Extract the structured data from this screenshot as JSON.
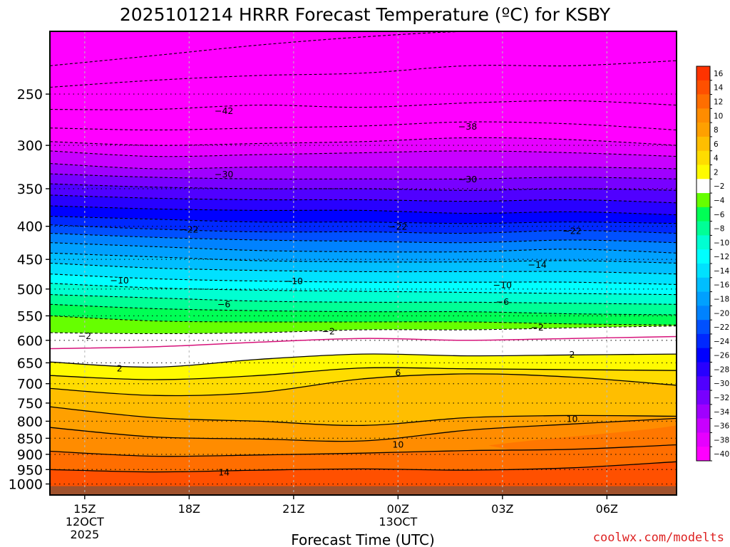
{
  "chart_data": {
    "type": "heatmap",
    "title": "2025101214 HRRR Forecast Temperature (ºC) for KSBY",
    "xlabel": "Forecast Time (UTC)",
    "credit": "coolwx.com/modelts",
    "x_ticks": [
      {
        "hour": 1,
        "label": "15Z",
        "sub1": "12OCT",
        "sub2": "2025"
      },
      {
        "hour": 4,
        "label": "18Z",
        "sub1": "",
        "sub2": ""
      },
      {
        "hour": 7,
        "label": "21Z",
        "sub1": "",
        "sub2": ""
      },
      {
        "hour": 10,
        "label": "00Z",
        "sub1": "13OCT",
        "sub2": ""
      },
      {
        "hour": 13,
        "label": "03Z",
        "sub1": "",
        "sub2": ""
      },
      {
        "hour": 16,
        "label": "06Z",
        "sub1": "",
        "sub2": ""
      }
    ],
    "x_range_hours": [
      0,
      18
    ],
    "y_axis": "pressure (hPa), log scale",
    "y_ticks": [
      250,
      300,
      350,
      400,
      450,
      500,
      550,
      600,
      650,
      700,
      750,
      800,
      850,
      900,
      950,
      1000
    ],
    "y_range": [
      200,
      1040
    ],
    "colorbar": {
      "levels": [
        16,
        14,
        12,
        10,
        8,
        6,
        4,
        2,
        -2,
        -4,
        -6,
        -8,
        -10,
        -12,
        -14,
        -16,
        -18,
        -20,
        -22,
        -24,
        -26,
        -28,
        -30,
        -32,
        -34,
        -36,
        -38,
        -40
      ],
      "labels": [
        "16",
        "14",
        "12",
        "10",
        "8",
        "6",
        "4",
        "2",
        "−2",
        "−4",
        "−6",
        "−8",
        "−10",
        "−12",
        "−14",
        "−16",
        "−18",
        "−20",
        "−22",
        "−24",
        "−26",
        "−28",
        "−30",
        "−32",
        "−34",
        "−36",
        "−38",
        "−40"
      ],
      "colors": [
        "#ff3300",
        "#ff5000",
        "#ff6e00",
        "#ff8c00",
        "#ffa000",
        "#ffbe00",
        "#ffdc00",
        "#fffa00",
        "#ffffff",
        "#66ff00",
        "#00ff55",
        "#00ff96",
        "#00ffd2",
        "#00ffff",
        "#00e1ff",
        "#00beff",
        "#00a0ff",
        "#0082ff",
        "#0050ff",
        "#0028ff",
        "#0000ff",
        "#2800ff",
        "#5000ff",
        "#7800ff",
        "#a000ff",
        "#c800ff",
        "#e600ff",
        "#ff00ff"
      ]
    },
    "band_colors": {
      "-40": "#ff00ff",
      "-38": "#e600ff",
      "-36": "#c800ff",
      "-34": "#a000ff",
      "-32": "#7800ff",
      "-30": "#5000ff",
      "-28": "#2800ff",
      "-26": "#0000ff",
      "-24": "#0028ff",
      "-22": "#0050ff",
      "-20": "#0082ff",
      "-18": "#00a0ff",
      "-16": "#00beff",
      "-14": "#00e1ff",
      "-12": "#00ffff",
      "-10": "#00ffd2",
      "-8": "#00ff96",
      "-6": "#00ff55",
      "-4": "#66ff00",
      "-2": "#ffffff",
      "2": "#fffa00",
      "4": "#ffdc00",
      "6": "#ffbe00",
      "8": "#ffa000",
      "10": "#ff8c00",
      "12": "#ff6e00",
      "14": "#ff5000",
      "16": "#ff3300"
    },
    "ground_color": "#a0522d",
    "isotherm_profiles": {
      "hours": [
        0,
        3,
        6,
        9,
        12,
        15,
        18
      ],
      "temp_levels": [
        -46,
        -44,
        -42,
        -40,
        -38,
        -36,
        -34,
        -32,
        -30,
        -28,
        -26,
        -24,
        -22,
        -20,
        -18,
        -16,
        -14,
        -12,
        -10,
        -8,
        -6,
        -4,
        -2,
        0,
        2,
        4,
        6,
        8,
        10,
        12,
        14
      ],
      "pressure": [
        [
          226,
          218,
          210,
          204,
          200,
          200,
          200
        ],
        [
          244,
          238,
          234,
          232,
          226,
          226,
          222
        ],
        [
          264,
          264,
          260,
          262,
          258,
          256,
          260
        ],
        [
          282,
          284,
          282,
          280,
          276,
          278,
          284
        ],
        [
          296,
          300,
          298,
          296,
          292,
          294,
          300
        ],
        [
          306,
          312,
          310,
          308,
          306,
          308,
          312
        ],
        [
          320,
          326,
          324,
          324,
          324,
          324,
          326
        ],
        [
          332,
          336,
          338,
          338,
          338,
          336,
          338
        ],
        [
          344,
          348,
          350,
          350,
          352,
          350,
          352
        ],
        [
          358,
          362,
          364,
          364,
          366,
          364,
          368
        ],
        [
          372,
          376,
          378,
          378,
          382,
          380,
          384
        ],
        [
          386,
          390,
          394,
          394,
          396,
          394,
          396
        ],
        [
          398,
          404,
          408,
          408,
          410,
          406,
          410
        ],
        [
          410,
          416,
          420,
          422,
          424,
          420,
          424
        ],
        [
          424,
          430,
          436,
          438,
          438,
          434,
          440
        ],
        [
          440,
          446,
          452,
          454,
          454,
          452,
          456
        ],
        [
          456,
          464,
          468,
          470,
          470,
          470,
          474
        ],
        [
          474,
          482,
          486,
          488,
          488,
          488,
          492
        ],
        [
          490,
          498,
          502,
          504,
          506,
          508,
          510
        ],
        [
          510,
          516,
          522,
          524,
          524,
          526,
          528
        ],
        [
          528,
          536,
          540,
          542,
          542,
          546,
          548
        ],
        [
          550,
          560,
          562,
          562,
          562,
          566,
          568
        ],
        [
          584,
          586,
          584,
          578,
          578,
          574,
          570
        ],
        [
          618,
          614,
          604,
          596,
          600,
          596,
          592
        ],
        [
          648,
          660,
          642,
          630,
          634,
          632,
          630
        ],
        [
          680,
          690,
          680,
          662,
          664,
          666,
          668
        ],
        [
          712,
          730,
          722,
          688,
          676,
          684,
          704
        ],
        [
          760,
          790,
          800,
          812,
          790,
          784,
          786
        ],
        [
          818,
          846,
          852,
          858,
          826,
          808,
          792
        ],
        [
          890,
          906,
          902,
          896,
          888,
          884,
          870
        ],
        [
          950,
          958,
          952,
          948,
          952,
          944,
          924
        ]
      ]
    },
    "isotherm_labels": [
      {
        "text": "−42",
        "hour": 5,
        "p": 265
      },
      {
        "text": "−38",
        "hour": 12,
        "p": 280
      },
      {
        "text": "−30",
        "hour": 5,
        "p": 332
      },
      {
        "text": "−30",
        "hour": 12,
        "p": 338
      },
      {
        "text": "−22",
        "hour": 4,
        "p": 404
      },
      {
        "text": "−22",
        "hour": 10,
        "p": 400
      },
      {
        "text": "−22",
        "hour": 15,
        "p": 406
      },
      {
        "text": "−14",
        "hour": 14,
        "p": 458
      },
      {
        "text": "−10",
        "hour": 2,
        "p": 484
      },
      {
        "text": "−10",
        "hour": 7,
        "p": 485
      },
      {
        "text": "−10",
        "hour": 13,
        "p": 492
      },
      {
        "text": "−6",
        "hour": 5,
        "p": 527
      },
      {
        "text": "−6",
        "hour": 13,
        "p": 522
      },
      {
        "text": "−2",
        "hour": 1,
        "p": 590
      },
      {
        "text": "−2",
        "hour": 8,
        "p": 580
      },
      {
        "text": "−2",
        "hour": 14,
        "p": 572
      },
      {
        "text": "2",
        "hour": 2,
        "p": 662
      },
      {
        "text": "2",
        "hour": 15,
        "p": 630
      },
      {
        "text": "6",
        "hour": 10,
        "p": 672
      },
      {
        "text": "10",
        "hour": 15,
        "p": 792
      },
      {
        "text": "10",
        "hour": 10,
        "p": 868
      },
      {
        "text": "14",
        "hour": 5,
        "p": 958
      }
    ]
  }
}
